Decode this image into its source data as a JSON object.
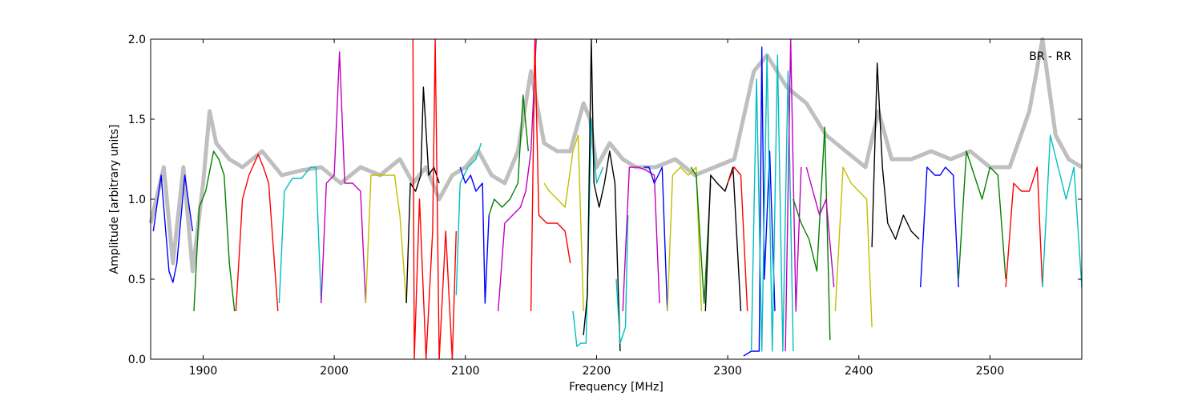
{
  "chart_data": {
    "type": "line",
    "title": "",
    "xlabel": "Frequency [MHz]",
    "ylabel": "Amplitude [arbitrary units]",
    "xlim": [
      1860,
      2570
    ],
    "ylim": [
      0.0,
      2.0
    ],
    "grid": false,
    "annotation": "BR - RR",
    "x_ticks": [
      1900,
      2000,
      2100,
      2200,
      2300,
      2400,
      2500
    ],
    "y_ticks": [
      0.0,
      0.5,
      1.0,
      1.5,
      2.0
    ],
    "y_tick_labels": [
      "0.0",
      "0.5",
      "1.0",
      "1.5",
      "2.0"
    ],
    "series": [
      {
        "color": "#bfbfbf",
        "x": [
          1860,
          1870,
          1877,
          1885,
          1892,
          1900,
          1905,
          1910,
          1920,
          1930,
          1945,
          1960,
          1975,
          1990,
          2005,
          2020,
          2035,
          2050,
          2060,
          2070,
          2080,
          2090,
          2100,
          2110,
          2120,
          2130,
          2140,
          2150,
          2160,
          2170,
          2180,
          2190,
          2195,
          2200,
          2210,
          2220,
          2230,
          2245,
          2260,
          2275,
          2290,
          2305,
          2320,
          2330,
          2345,
          2360,
          2375,
          2390,
          2405,
          2415,
          2425,
          2440,
          2455,
          2470,
          2485,
          2500,
          2515,
          2530,
          2540,
          2550,
          2560,
          2570
        ],
        "y": [
          0.85,
          1.2,
          0.6,
          1.2,
          0.55,
          1.1,
          1.55,
          1.35,
          1.25,
          1.2,
          1.3,
          1.15,
          1.18,
          1.2,
          1.1,
          1.2,
          1.15,
          1.25,
          1.1,
          1.2,
          1.0,
          1.15,
          1.2,
          1.3,
          1.15,
          1.1,
          1.3,
          1.8,
          1.35,
          1.3,
          1.3,
          1.6,
          1.5,
          1.2,
          1.35,
          1.25,
          1.2,
          1.2,
          1.25,
          1.15,
          1.2,
          1.25,
          1.8,
          1.9,
          1.7,
          1.6,
          1.4,
          1.3,
          1.2,
          1.55,
          1.25,
          1.25,
          1.3,
          1.25,
          1.3,
          1.2,
          1.2,
          1.55,
          2.0,
          1.4,
          1.25,
          1.2
        ]
      },
      {
        "color": "#0000ff",
        "x": [
          1862,
          1868,
          1874,
          1877,
          1880,
          1886,
          1892
        ],
        "y": [
          0.8,
          1.15,
          0.55,
          0.48,
          0.6,
          1.15,
          0.8
        ]
      },
      {
        "color": "#008000",
        "x": [
          1893,
          1897,
          1902,
          1908,
          1912,
          1916,
          1920,
          1924
        ],
        "y": [
          0.3,
          0.95,
          1.05,
          1.3,
          1.25,
          1.15,
          0.6,
          0.3
        ]
      },
      {
        "color": "#ff0000",
        "x": [
          1925,
          1930,
          1935,
          1942,
          1946,
          1950,
          1957
        ],
        "y": [
          0.3,
          1.0,
          1.15,
          1.28,
          1.2,
          1.1,
          0.3
        ]
      },
      {
        "color": "#00bfbf",
        "x": [
          1958,
          1962,
          1968,
          1975,
          1982,
          1986,
          1990
        ],
        "y": [
          0.35,
          1.05,
          1.13,
          1.13,
          1.2,
          1.2,
          0.35
        ]
      },
      {
        "color": "#bf00bf",
        "x": [
          1990,
          1994,
          2000,
          2004,
          2008,
          2014,
          2020,
          2024
        ],
        "y": [
          0.35,
          1.1,
          1.15,
          1.92,
          1.1,
          1.1,
          1.05,
          0.35
        ]
      },
      {
        "color": "#bfbf00",
        "x": [
          2024,
          2028,
          2034,
          2040,
          2046,
          2050,
          2055
        ],
        "y": [
          0.35,
          1.15,
          1.15,
          1.15,
          1.15,
          0.9,
          0.35
        ]
      },
      {
        "color": "#000000",
        "x": [
          2055,
          2058,
          2062,
          2066,
          2068,
          2072,
          2076,
          2080
        ],
        "y": [
          0.35,
          1.1,
          1.05,
          1.15,
          1.7,
          1.15,
          1.2,
          1.1
        ]
      },
      {
        "color": "#ff0000",
        "x": [
          2060,
          2061,
          2065,
          2070,
          2075,
          2077,
          2080,
          2085,
          2090,
          2093
        ],
        "y": [
          2.0,
          0.0,
          1.0,
          0.0,
          0.8,
          2.0,
          0.0,
          0.8,
          0.0,
          0.8
        ]
      },
      {
        "color": "#00bfbf",
        "x": [
          2093,
          2096,
          2102,
          2108,
          2112
        ],
        "y": [
          0.4,
          1.1,
          1.2,
          1.25,
          1.35
        ]
      },
      {
        "color": "#0000ff",
        "x": [
          2096,
          2100,
          2104,
          2108,
          2113,
          2115,
          2118
        ],
        "y": [
          1.2,
          1.1,
          1.15,
          1.05,
          1.1,
          0.35,
          0.9
        ]
      },
      {
        "color": "#008000",
        "x": [
          2118,
          2122,
          2128,
          2134,
          2140,
          2144,
          2148
        ],
        "y": [
          0.9,
          1.0,
          0.95,
          1.0,
          1.1,
          1.65,
          1.3
        ]
      },
      {
        "color": "#bf00bf",
        "x": [
          2125,
          2130,
          2136,
          2142,
          2146,
          2150,
          2154
        ],
        "y": [
          0.3,
          0.85,
          0.9,
          0.95,
          1.05,
          1.3,
          2.0
        ]
      },
      {
        "color": "#ff0000",
        "x": [
          2150,
          2153,
          2156,
          2162,
          2170,
          2176,
          2180
        ],
        "y": [
          0.3,
          2.0,
          0.9,
          0.85,
          0.85,
          0.8,
          0.6
        ]
      },
      {
        "color": "#bfbf00",
        "x": [
          2160,
          2164,
          2170,
          2176,
          2182,
          2186,
          2190
        ],
        "y": [
          1.1,
          1.05,
          1.0,
          0.95,
          1.3,
          1.4,
          0.3
        ]
      },
      {
        "color": "#00bfbf",
        "x": [
          2182,
          2185,
          2188,
          2192,
          2196,
          2200,
          2205
        ],
        "y": [
          0.3,
          0.08,
          0.1,
          0.1,
          1.5,
          1.1,
          1.2
        ]
      },
      {
        "color": "#000000",
        "x": [
          2190,
          2193,
          2196,
          2198,
          2202,
          2206,
          2210,
          2214,
          2218
        ],
        "y": [
          0.15,
          0.4,
          2.0,
          1.1,
          0.95,
          1.1,
          1.3,
          1.1,
          0.05
        ]
      },
      {
        "color": "#00bfbf",
        "x": [
          2215,
          2218,
          2222,
          2224
        ],
        "y": [
          0.5,
          0.1,
          0.2,
          0.9
        ]
      },
      {
        "color": "#bf00bf",
        "x": [
          2220,
          2225,
          2232,
          2238,
          2244,
          2248
        ],
        "y": [
          0.3,
          1.2,
          1.2,
          1.18,
          1.15,
          0.35
        ]
      },
      {
        "color": "#0000ff",
        "x": [
          2236,
          2240,
          2244,
          2250,
          2254
        ],
        "y": [
          1.2,
          1.2,
          1.1,
          1.2,
          0.3
        ]
      },
      {
        "color": "#bfbf00",
        "x": [
          2254,
          2258,
          2264,
          2270,
          2276,
          2280
        ],
        "y": [
          0.3,
          1.15,
          1.2,
          1.15,
          1.2,
          0.3
        ]
      },
      {
        "color": "#008000",
        "x": [
          2272,
          2276,
          2282,
          2287
        ],
        "y": [
          1.2,
          1.15,
          0.35,
          1.1
        ]
      },
      {
        "color": "#000000",
        "x": [
          2283,
          2287,
          2292,
          2298,
          2304,
          2310
        ],
        "y": [
          0.3,
          1.15,
          1.1,
          1.05,
          1.2,
          0.3
        ]
      },
      {
        "color": "#ff0000",
        "x": [
          2300,
          2305,
          2310,
          2315
        ],
        "y": [
          1.1,
          1.2,
          1.15,
          0.3
        ]
      },
      {
        "color": "#0000ff",
        "x": [
          2312,
          2318,
          2324,
          2326,
          2328,
          2332,
          2336
        ],
        "y": [
          0.02,
          0.05,
          0.05,
          1.95,
          0.5,
          1.3,
          0.3
        ]
      },
      {
        "color": "#00bfbf",
        "x": [
          2318,
          2322,
          2326,
          2330,
          2334,
          2338,
          2342,
          2346,
          2350
        ],
        "y": [
          0.05,
          1.75,
          0.05,
          1.9,
          0.05,
          1.9,
          0.05,
          1.8,
          0.05
        ]
      },
      {
        "color": "#bf00bf",
        "x": [
          2344,
          2348,
          2352,
          2356
        ],
        "y": [
          0.05,
          2.0,
          0.3,
          1.2
        ]
      },
      {
        "color": "#008000",
        "x": [
          2350,
          2356,
          2362,
          2368,
          2374,
          2378
        ],
        "y": [
          1.0,
          0.85,
          0.75,
          0.55,
          1.45,
          0.12
        ]
      },
      {
        "color": "#bf00bf",
        "x": [
          2360,
          2365,
          2370,
          2375,
          2381
        ],
        "y": [
          1.2,
          1.05,
          0.9,
          1.0,
          0.45
        ]
      },
      {
        "color": "#bfbf00",
        "x": [
          2382,
          2388,
          2394,
          2400,
          2406,
          2410
        ],
        "y": [
          0.3,
          1.2,
          1.1,
          1.05,
          1.0,
          0.2
        ]
      },
      {
        "color": "#000000",
        "x": [
          2410,
          2414,
          2418,
          2422,
          2428,
          2434,
          2440,
          2446
        ],
        "y": [
          0.7,
          1.85,
          1.2,
          0.85,
          0.75,
          0.9,
          0.8,
          0.75
        ]
      },
      {
        "color": "#0000ff",
        "x": [
          2447,
          2452,
          2458,
          2462,
          2466,
          2472,
          2476
        ],
        "y": [
          0.45,
          1.2,
          1.15,
          1.15,
          1.2,
          1.15,
          0.45
        ]
      },
      {
        "color": "#008000",
        "x": [
          2476,
          2482,
          2488,
          2494,
          2500,
          2506,
          2512
        ],
        "y": [
          0.5,
          1.3,
          1.15,
          1.0,
          1.2,
          1.15,
          0.5
        ]
      },
      {
        "color": "#ff0000",
        "x": [
          2512,
          2518,
          2524,
          2530,
          2536,
          2540
        ],
        "y": [
          0.45,
          1.1,
          1.05,
          1.05,
          1.2,
          0.45
        ]
      },
      {
        "color": "#00bfbf",
        "x": [
          2540,
          2546,
          2552,
          2558,
          2564,
          2570
        ],
        "y": [
          0.45,
          1.4,
          1.2,
          1.0,
          1.2,
          0.45
        ]
      }
    ]
  }
}
